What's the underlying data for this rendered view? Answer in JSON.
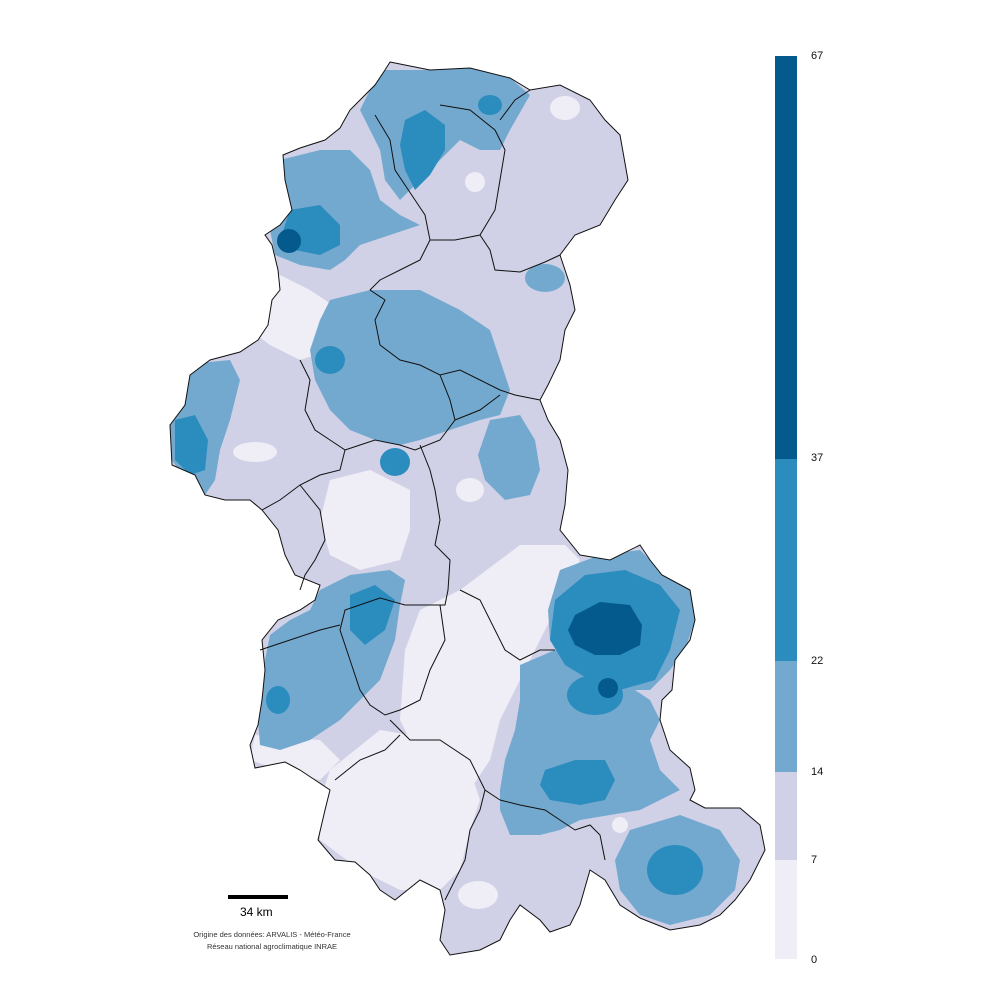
{
  "legend": {
    "colors": [
      "#efedf5",
      "#d0d1e6",
      "#74a9cf",
      "#2b8cbe",
      "#045a8d"
    ],
    "ticks": [
      "0",
      "7",
      "14",
      "22",
      "37",
      "67"
    ]
  },
  "scale": {
    "label": "34 km"
  },
  "credits": {
    "line1": "Origine des données: ARVALIS - Météo-France",
    "line2": "Réseau national agroclimatique INRAE"
  }
}
